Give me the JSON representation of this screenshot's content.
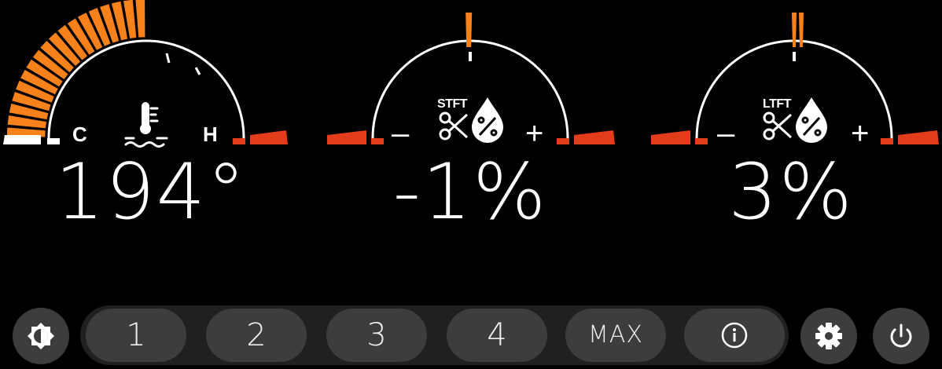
{
  "gauges": {
    "coolant": {
      "value": "194°",
      "cold_label": "C",
      "hot_label": "H",
      "icon": "coolant-temp-icon",
      "fill_fraction": 0.5
    },
    "stft": {
      "value": "-1%",
      "tag": "STFT",
      "minus": "–",
      "plus": "+",
      "icon": "fuel-trim-icon",
      "needle_percent": -1
    },
    "ltft": {
      "value": "3%",
      "tag": "LTFT",
      "minus": "–",
      "plus": "+",
      "icon": "fuel-trim-icon",
      "needle_percent": 3
    }
  },
  "toolbar": {
    "brightness_icon": "brightness-icon",
    "presets": [
      "1",
      "2",
      "3",
      "4"
    ],
    "max_label": "MAX",
    "info_icon": "info-icon",
    "settings_icon": "gear-icon",
    "power_icon": "power-icon"
  },
  "colors": {
    "accent_orange": "#f7821b",
    "warning_red": "#e23c1a",
    "arc_white": "#ffffff",
    "button_bg": "#3d3d3d",
    "bar_bg": "#202020"
  }
}
